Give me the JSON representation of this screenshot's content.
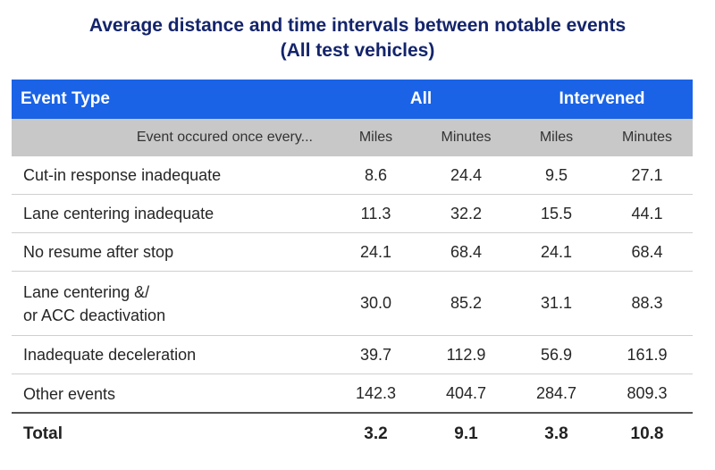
{
  "title": {
    "line1": "Average distance and time intervals between notable events",
    "line2": "(All test vehicles)"
  },
  "header": {
    "event_type": "Event Type",
    "all": "All",
    "intervened": "Intervened"
  },
  "subheader": {
    "label": "Event occured once every...",
    "all_miles": "Miles",
    "all_minutes": "Minutes",
    "int_miles": "Miles",
    "int_minutes": "Minutes"
  },
  "rows": [
    {
      "event_line1": "Cut-in response inadequate",
      "event_line2": "",
      "all_miles": "8.6",
      "all_minutes": "24.4",
      "int_miles": "9.5",
      "int_minutes": "27.1"
    },
    {
      "event_line1": "Lane centering inadequate",
      "event_line2": "",
      "all_miles": "11.3",
      "all_minutes": "32.2",
      "int_miles": "15.5",
      "int_minutes": "44.1"
    },
    {
      "event_line1": "No resume after stop",
      "event_line2": "",
      "all_miles": "24.1",
      "all_minutes": "68.4",
      "int_miles": "24.1",
      "int_minutes": "68.4"
    },
    {
      "event_line1": "Lane centering &/",
      "event_line2": "or ACC deactivation",
      "all_miles": "30.0",
      "all_minutes": "85.2",
      "int_miles": "31.1",
      "int_minutes": "88.3"
    },
    {
      "event_line1": "Inadequate deceleration",
      "event_line2": "",
      "all_miles": "39.7",
      "all_minutes": "112.9",
      "int_miles": "56.9",
      "int_minutes": "161.9"
    },
    {
      "event_line1": "Other events",
      "event_line2": "",
      "all_miles": "142.3",
      "all_minutes": "404.7",
      "int_miles": "284.7",
      "int_minutes": "809.3"
    }
  ],
  "total": {
    "label": "Total",
    "all_miles": "3.2",
    "all_minutes": "9.1",
    "int_miles": "3.8",
    "int_minutes": "10.8"
  },
  "colors": {
    "title": "#14246b",
    "header_bg": "#1a63e6",
    "subheader_bg": "#c8c8c8"
  }
}
